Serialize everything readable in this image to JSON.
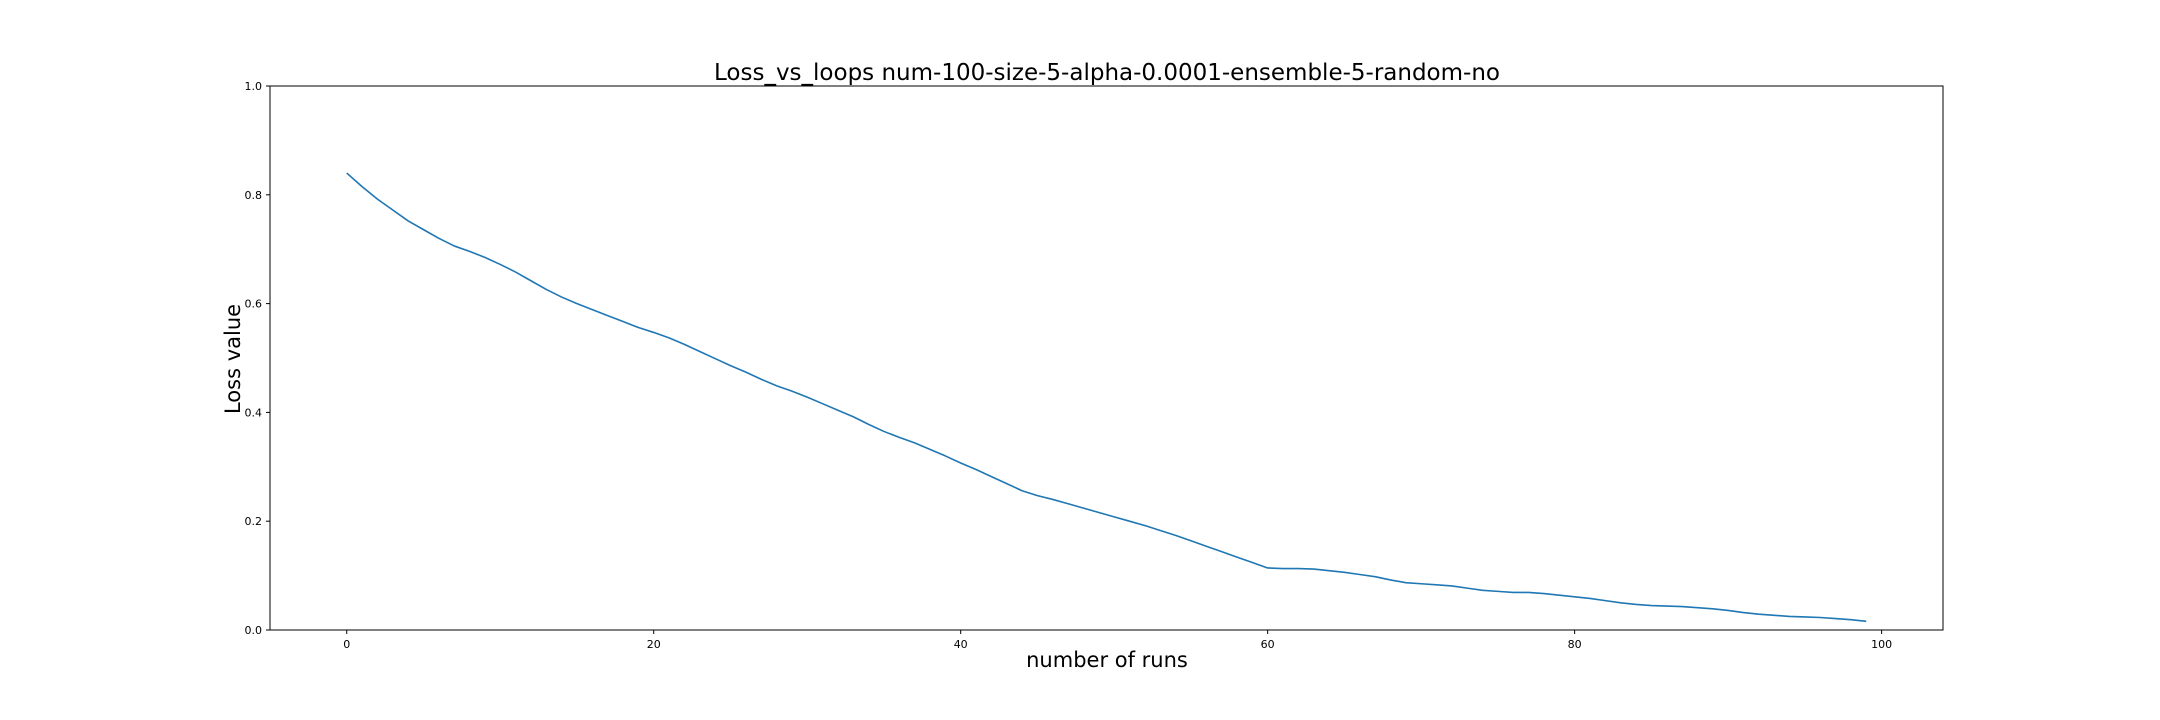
{
  "chart_data": {
    "type": "line",
    "title": "Loss_vs_loops num-100-size-5-alpha-0.0001-ensemble-5-random-no",
    "xlabel": "number of runs",
    "ylabel": "Loss value",
    "xlim": [
      -5,
      104
    ],
    "ylim": [
      0.0,
      1.0
    ],
    "xticks": [
      0,
      20,
      40,
      60,
      80,
      100
    ],
    "xtick_labels": [
      "0",
      "20",
      "40",
      "60",
      "80",
      "100"
    ],
    "yticks": [
      0.0,
      0.2,
      0.4,
      0.6,
      0.8,
      1.0
    ],
    "ytick_labels": [
      "0.0",
      "0.2",
      "0.4",
      "0.6",
      "0.8",
      "1.0"
    ],
    "grid": false,
    "legend": false,
    "series": [
      {
        "color": "#1f77b4",
        "x": [
          0,
          1,
          2,
          3,
          4,
          5,
          6,
          7,
          8,
          9,
          10,
          11,
          12,
          13,
          14,
          15,
          16,
          17,
          18,
          19,
          20,
          21,
          22,
          23,
          24,
          25,
          26,
          27,
          28,
          29,
          30,
          31,
          32,
          33,
          34,
          35,
          36,
          37,
          38,
          39,
          40,
          41,
          42,
          43,
          44,
          45,
          46,
          47,
          48,
          49,
          50,
          51,
          52,
          53,
          54,
          55,
          56,
          57,
          58,
          59,
          60,
          61,
          62,
          63,
          64,
          65,
          66,
          67,
          68,
          69,
          70,
          71,
          72,
          73,
          74,
          75,
          76,
          77,
          78,
          79,
          80,
          81,
          82,
          83,
          84,
          85,
          86,
          87,
          88,
          89,
          90,
          91,
          92,
          93,
          94,
          95,
          96,
          97,
          98,
          99
        ],
        "y": [
          0.84,
          0.815,
          0.792,
          0.772,
          0.752,
          0.736,
          0.72,
          0.706,
          0.696,
          0.685,
          0.672,
          0.658,
          0.642,
          0.626,
          0.612,
          0.6,
          0.589,
          0.578,
          0.567,
          0.556,
          0.547,
          0.537,
          0.525,
          0.512,
          0.499,
          0.486,
          0.474,
          0.461,
          0.449,
          0.439,
          0.428,
          0.416,
          0.404,
          0.392,
          0.378,
          0.365,
          0.354,
          0.344,
          0.332,
          0.32,
          0.307,
          0.295,
          0.282,
          0.269,
          0.256,
          0.247,
          0.24,
          0.232,
          0.224,
          0.216,
          0.208,
          0.2,
          0.192,
          0.183,
          0.174,
          0.164,
          0.154,
          0.144,
          0.134,
          0.124,
          0.114,
          0.113,
          0.113,
          0.112,
          0.109,
          0.106,
          0.102,
          0.098,
          0.092,
          0.087,
          0.085,
          0.083,
          0.081,
          0.077,
          0.073,
          0.071,
          0.069,
          0.069,
          0.067,
          0.064,
          0.061,
          0.058,
          0.054,
          0.05,
          0.047,
          0.045,
          0.044,
          0.043,
          0.041,
          0.039,
          0.036,
          0.032,
          0.029,
          0.027,
          0.025,
          0.024,
          0.023,
          0.021,
          0.019,
          0.016
        ]
      }
    ]
  }
}
